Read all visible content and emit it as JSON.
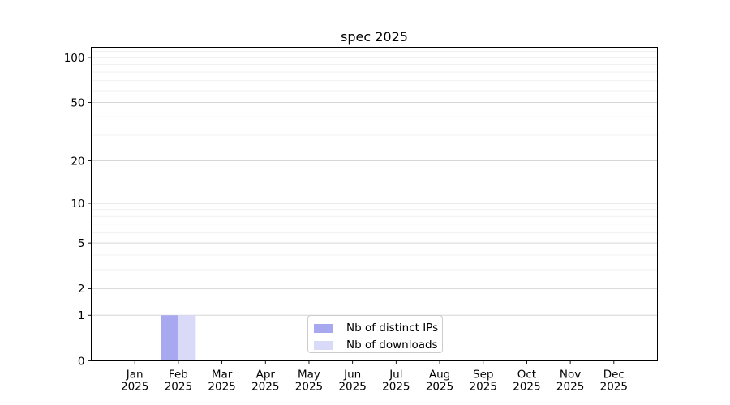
{
  "chart_data": {
    "type": "bar",
    "title": "spec 2025",
    "categories": [
      "Jan 2025",
      "Feb 2025",
      "Mar 2025",
      "Apr 2025",
      "May 2025",
      "Jun 2025",
      "Jul 2025",
      "Aug 2025",
      "Sep 2025",
      "Oct 2025",
      "Nov 2025",
      "Dec 2025"
    ],
    "series": [
      {
        "name": "Nb of distinct IPs",
        "color": "#a8a8f0",
        "values": [
          0,
          1,
          0,
          0,
          0,
          0,
          0,
          0,
          0,
          0,
          0,
          0
        ]
      },
      {
        "name": "Nb of downloads",
        "color": "#d9d9f8",
        "values": [
          0,
          1,
          0,
          0,
          0,
          0,
          0,
          0,
          0,
          0,
          0,
          0
        ]
      }
    ],
    "xlabel": "",
    "ylabel": "",
    "y_axis": {
      "scale": "log1p",
      "ticks": [
        0,
        1,
        2,
        5,
        10,
        20,
        50,
        100
      ],
      "minor_ticks": [
        3,
        4,
        6,
        7,
        8,
        9,
        30,
        40,
        60,
        70,
        80,
        90,
        110
      ],
      "min": 0,
      "max": 117
    },
    "grid": {
      "major_color": "#d6d6d6",
      "minor_color": "#efefef",
      "vertical": false
    },
    "legend": {
      "position": "lower-center",
      "border_color": "#cccccc"
    },
    "bar_width_fraction": 0.4,
    "axis_color": "#000000",
    "text_color": "#000000",
    "background_color": "#ffffff"
  }
}
